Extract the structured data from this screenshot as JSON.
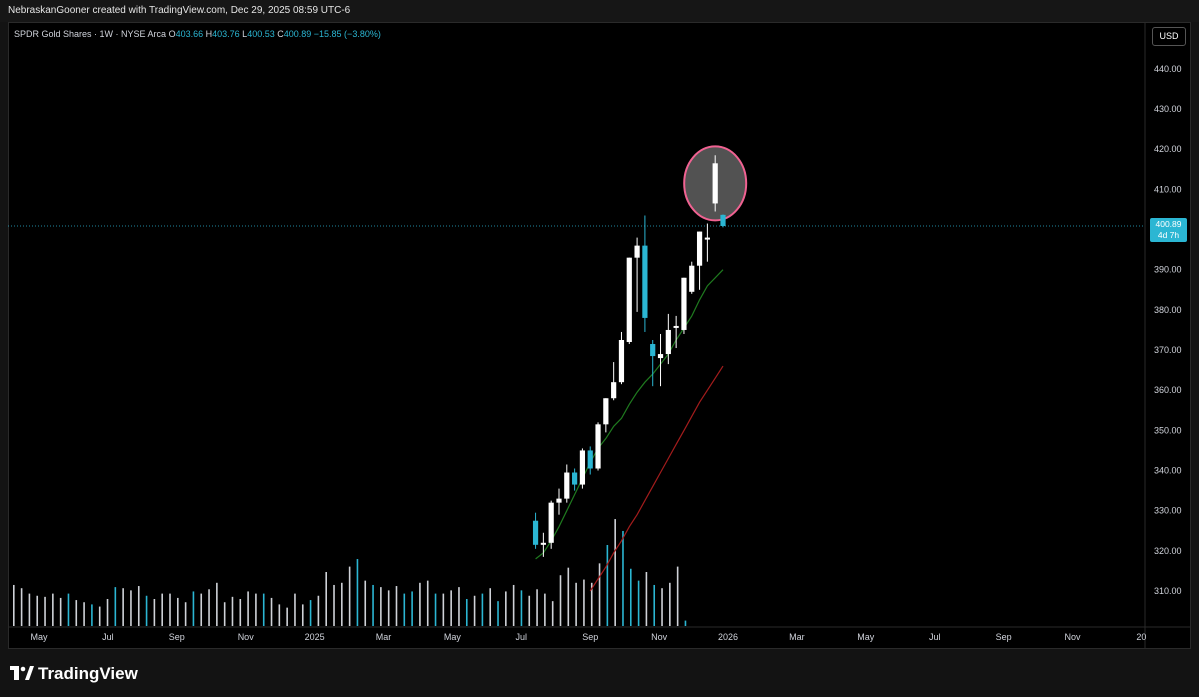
{
  "header": {
    "credit": "NebraskanGooner created with TradingView.com, Dec 29, 2025 08:59 UTC-6"
  },
  "legend": {
    "symbol": "SPDR Gold Shares · 1W · NYSE Arca",
    "o_label": "O",
    "o": "403.66",
    "h_label": "H",
    "h": "403.76",
    "l_label": "L",
    "l": "400.53",
    "c_label": "C",
    "c": "400.89",
    "change": "−15.85 (−3.80%)"
  },
  "currency_button": "USD",
  "price_tag": {
    "price": "400.89",
    "countdown": "4d 7h"
  },
  "branding": "TradingView",
  "colors": {
    "up": "#ffffff",
    "down": "#2bb6d3",
    "ma_fast": "#1f7a1f",
    "ma_slow": "#a31c1c",
    "highlight": "#f06292",
    "background": "#000000"
  },
  "chart_data": {
    "type": "candlestick",
    "title": "SPDR Gold Shares · 1W · NYSE Arca",
    "y_ticks": [
      310,
      320,
      330,
      340,
      350,
      360,
      370,
      380,
      390,
      400,
      410,
      420,
      430,
      440
    ],
    "y_tick_labels": [
      "310.00",
      "320.00",
      "330.00",
      "340.00",
      "350.00",
      "360.00",
      "370.00",
      "380.00",
      "390.00",
      "400.00",
      "410.00",
      "420.00",
      "430.00",
      "440.00"
    ],
    "x_tick_labels": [
      "May",
      "Jul",
      "Sep",
      "Nov",
      "2025",
      "Mar",
      "May",
      "Jul",
      "Sep",
      "Nov",
      "2026",
      "Mar",
      "May",
      "Jul",
      "Sep",
      "Nov",
      "20"
    ],
    "last_price": 400.89,
    "candles": [
      {
        "o": 327.5,
        "h": 329.5,
        "l": 320.5,
        "c": 321.5
      },
      {
        "o": 321.5,
        "h": 324.5,
        "l": 318.5,
        "c": 322.0
      },
      {
        "o": 322.0,
        "h": 332.5,
        "l": 320.5,
        "c": 332.0
      },
      {
        "o": 332.0,
        "h": 335.5,
        "l": 329.0,
        "c": 333.0
      },
      {
        "o": 333.0,
        "h": 341.5,
        "l": 332.0,
        "c": 339.5
      },
      {
        "o": 339.5,
        "h": 340.5,
        "l": 335.0,
        "c": 336.5
      },
      {
        "o": 336.5,
        "h": 345.5,
        "l": 335.5,
        "c": 345.0
      },
      {
        "o": 345.0,
        "h": 346.0,
        "l": 339.0,
        "c": 340.5
      },
      {
        "o": 340.5,
        "h": 352.0,
        "l": 340.0,
        "c": 351.5
      },
      {
        "o": 351.5,
        "h": 358.0,
        "l": 349.5,
        "c": 358.0
      },
      {
        "o": 358.0,
        "h": 367.0,
        "l": 357.5,
        "c": 362.0
      },
      {
        "o": 362.0,
        "h": 374.5,
        "l": 361.5,
        "c": 372.5
      },
      {
        "o": 372.0,
        "h": 393.0,
        "l": 371.5,
        "c": 393.0
      },
      {
        "o": 393.0,
        "h": 398.0,
        "l": 379.5,
        "c": 396.0
      },
      {
        "o": 396.0,
        "h": 403.5,
        "l": 374.5,
        "c": 378.0
      },
      {
        "o": 371.5,
        "h": 372.5,
        "l": 361.0,
        "c": 368.5
      },
      {
        "o": 368.0,
        "h": 374.0,
        "l": 361.0,
        "c": 369.0
      },
      {
        "o": 369.0,
        "h": 379.0,
        "l": 366.5,
        "c": 375.0
      },
      {
        "o": 375.5,
        "h": 378.5,
        "l": 370.5,
        "c": 376.0
      },
      {
        "o": 375.0,
        "h": 388.0,
        "l": 374.0,
        "c": 388.0
      },
      {
        "o": 384.5,
        "h": 392.0,
        "l": 384.0,
        "c": 391.0
      },
      {
        "o": 391.0,
        "h": 399.5,
        "l": 385.0,
        "c": 399.5
      },
      {
        "o": 397.5,
        "h": 401.5,
        "l": 392.0,
        "c": 398.0
      },
      {
        "o": 406.5,
        "h": 418.5,
        "l": 404.5,
        "c": 416.5
      },
      {
        "o": 403.66,
        "h": 403.76,
        "l": 400.53,
        "c": 400.89
      }
    ],
    "ma_fast": [
      318.0,
      319.5,
      322.5,
      326.0,
      330.0,
      334.0,
      338.0,
      342.0,
      345.5,
      348.0,
      351.0,
      353.0,
      356.5,
      359.5,
      362.0,
      364.0,
      366.5,
      369.0,
      372.5,
      375.5,
      378.5,
      382.5,
      386.0,
      388.0,
      390.0
    ],
    "ma_slow": [
      310.0,
      313.0,
      316.0,
      319.5,
      322.5,
      326.0,
      329.0,
      332.5,
      336.0,
      339.5,
      343.0,
      346.5,
      350.0,
      353.5,
      357.0,
      360.0,
      363.0,
      366.0
    ],
    "volume": [
      {
        "v": 0.38,
        "dir": "up"
      },
      {
        "v": 0.35,
        "dir": "up"
      },
      {
        "v": 0.3,
        "dir": "up"
      },
      {
        "v": 0.28,
        "dir": "up"
      },
      {
        "v": 0.27,
        "dir": "up"
      },
      {
        "v": 0.3,
        "dir": "up"
      },
      {
        "v": 0.26,
        "dir": "up"
      },
      {
        "v": 0.3,
        "dir": "down"
      },
      {
        "v": 0.24,
        "dir": "up"
      },
      {
        "v": 0.22,
        "dir": "up"
      },
      {
        "v": 0.2,
        "dir": "down"
      },
      {
        "v": 0.18,
        "dir": "up"
      },
      {
        "v": 0.25,
        "dir": "up"
      },
      {
        "v": 0.36,
        "dir": "down"
      },
      {
        "v": 0.35,
        "dir": "up"
      },
      {
        "v": 0.33,
        "dir": "up"
      },
      {
        "v": 0.37,
        "dir": "up"
      },
      {
        "v": 0.28,
        "dir": "down"
      },
      {
        "v": 0.25,
        "dir": "up"
      },
      {
        "v": 0.3,
        "dir": "up"
      },
      {
        "v": 0.3,
        "dir": "up"
      },
      {
        "v": 0.26,
        "dir": "up"
      },
      {
        "v": 0.22,
        "dir": "up"
      },
      {
        "v": 0.32,
        "dir": "down"
      },
      {
        "v": 0.3,
        "dir": "up"
      },
      {
        "v": 0.34,
        "dir": "up"
      },
      {
        "v": 0.4,
        "dir": "up"
      },
      {
        "v": 0.22,
        "dir": "up"
      },
      {
        "v": 0.27,
        "dir": "up"
      },
      {
        "v": 0.25,
        "dir": "up"
      },
      {
        "v": 0.32,
        "dir": "up"
      },
      {
        "v": 0.3,
        "dir": "up"
      },
      {
        "v": 0.3,
        "dir": "down"
      },
      {
        "v": 0.26,
        "dir": "up"
      },
      {
        "v": 0.2,
        "dir": "up"
      },
      {
        "v": 0.17,
        "dir": "up"
      },
      {
        "v": 0.3,
        "dir": "up"
      },
      {
        "v": 0.2,
        "dir": "up"
      },
      {
        "v": 0.24,
        "dir": "down"
      },
      {
        "v": 0.28,
        "dir": "up"
      },
      {
        "v": 0.5,
        "dir": "up"
      },
      {
        "v": 0.38,
        "dir": "up"
      },
      {
        "v": 0.4,
        "dir": "up"
      },
      {
        "v": 0.55,
        "dir": "up"
      },
      {
        "v": 0.62,
        "dir": "down"
      },
      {
        "v": 0.42,
        "dir": "up"
      },
      {
        "v": 0.38,
        "dir": "down"
      },
      {
        "v": 0.36,
        "dir": "up"
      },
      {
        "v": 0.33,
        "dir": "up"
      },
      {
        "v": 0.37,
        "dir": "up"
      },
      {
        "v": 0.3,
        "dir": "down"
      },
      {
        "v": 0.32,
        "dir": "down"
      },
      {
        "v": 0.4,
        "dir": "up"
      },
      {
        "v": 0.42,
        "dir": "up"
      },
      {
        "v": 0.3,
        "dir": "down"
      },
      {
        "v": 0.3,
        "dir": "up"
      },
      {
        "v": 0.33,
        "dir": "up"
      },
      {
        "v": 0.36,
        "dir": "up"
      },
      {
        "v": 0.25,
        "dir": "down"
      },
      {
        "v": 0.28,
        "dir": "up"
      },
      {
        "v": 0.3,
        "dir": "down"
      },
      {
        "v": 0.35,
        "dir": "up"
      },
      {
        "v": 0.23,
        "dir": "down"
      },
      {
        "v": 0.32,
        "dir": "up"
      },
      {
        "v": 0.38,
        "dir": "up"
      },
      {
        "v": 0.33,
        "dir": "down"
      },
      {
        "v": 0.28,
        "dir": "up"
      },
      {
        "v": 0.34,
        "dir": "up"
      },
      {
        "v": 0.3,
        "dir": "up"
      },
      {
        "v": 0.23,
        "dir": "up"
      },
      {
        "v": 0.47,
        "dir": "up"
      },
      {
        "v": 0.54,
        "dir": "up"
      },
      {
        "v": 0.4,
        "dir": "up"
      },
      {
        "v": 0.43,
        "dir": "up"
      },
      {
        "v": 0.4,
        "dir": "up"
      },
      {
        "v": 0.58,
        "dir": "up"
      },
      {
        "v": 0.75,
        "dir": "down"
      },
      {
        "v": 0.99,
        "dir": "up"
      },
      {
        "v": 0.88,
        "dir": "down"
      },
      {
        "v": 0.53,
        "dir": "down"
      },
      {
        "v": 0.42,
        "dir": "down"
      },
      {
        "v": 0.5,
        "dir": "up"
      },
      {
        "v": 0.38,
        "dir": "down"
      },
      {
        "v": 0.35,
        "dir": "up"
      },
      {
        "v": 0.4,
        "dir": "up"
      },
      {
        "v": 0.55,
        "dir": "up"
      },
      {
        "v": 0.05,
        "dir": "down"
      }
    ],
    "annotation": {
      "shape": "ellipse",
      "around": "candle index 23"
    }
  }
}
